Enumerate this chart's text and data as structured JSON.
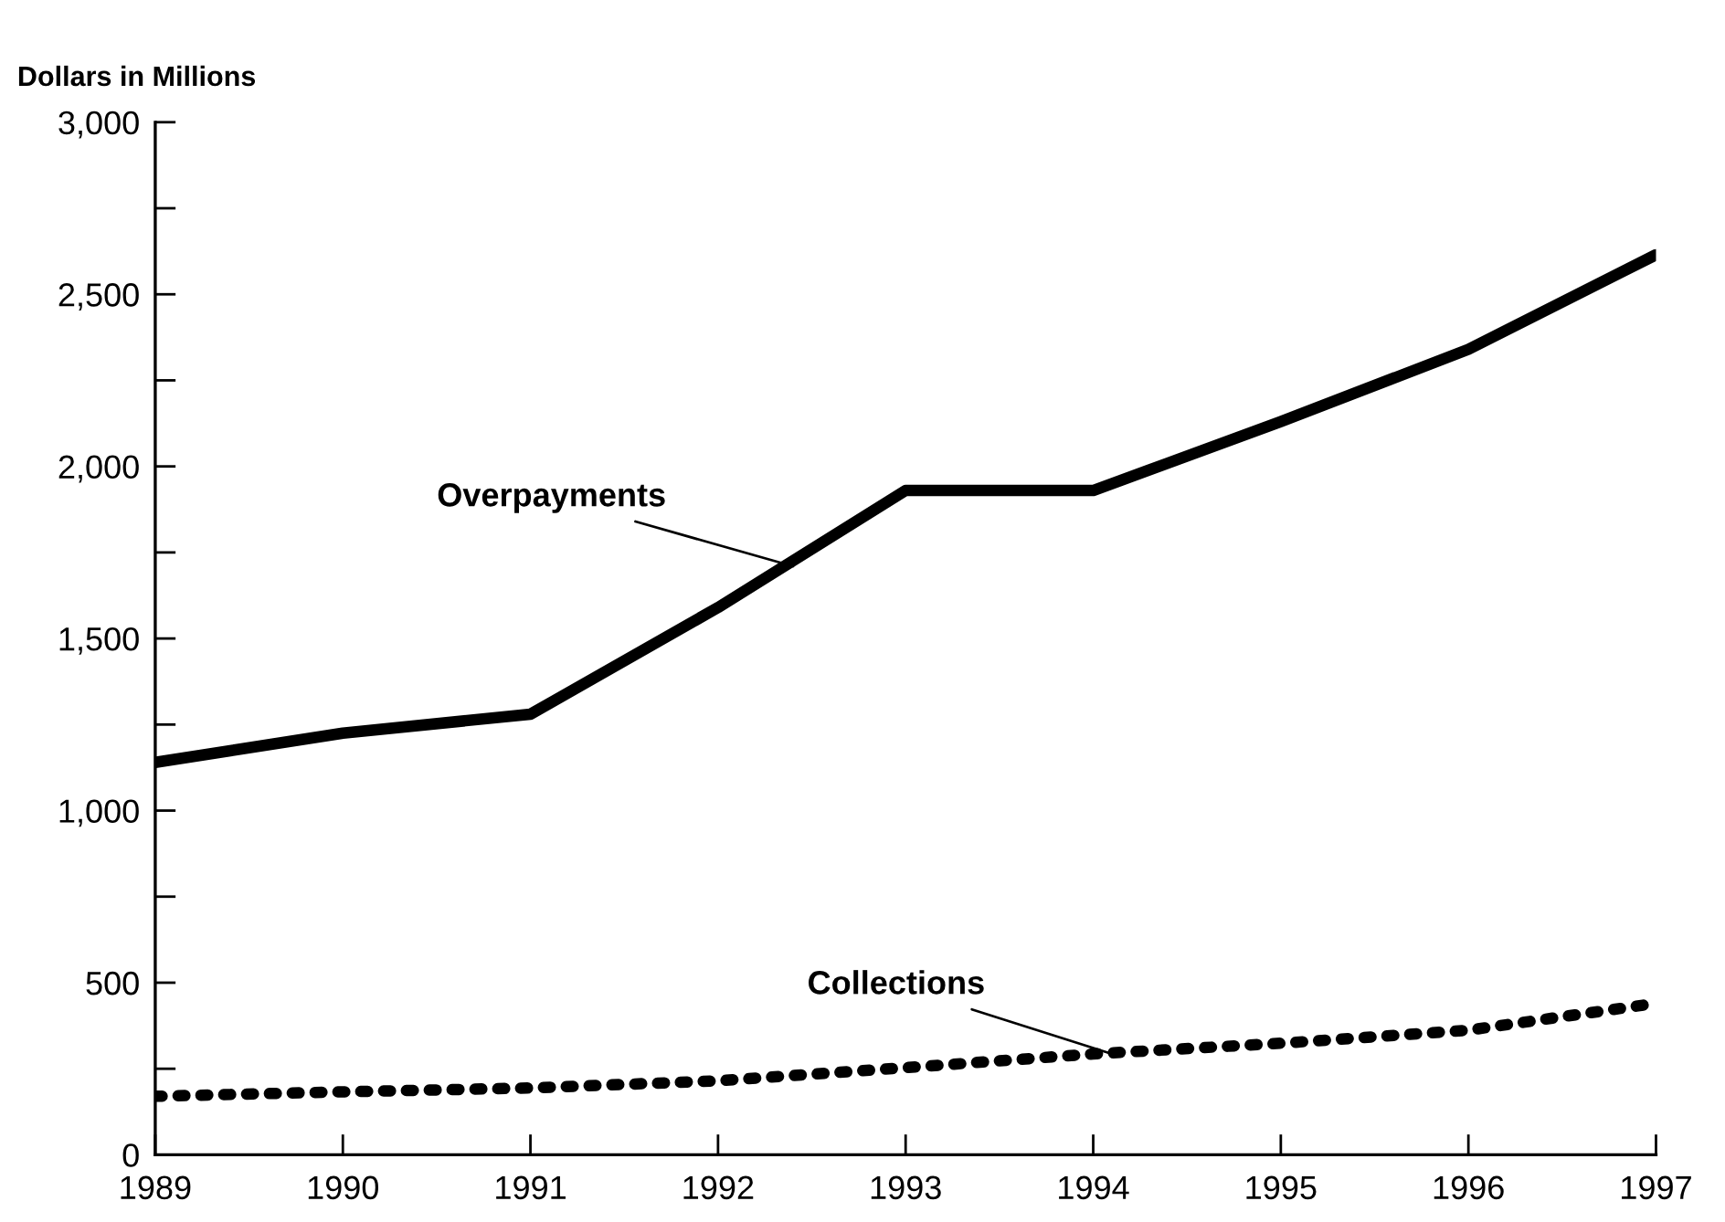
{
  "chart_data": {
    "type": "line",
    "ylabel": "Dollars in Millions",
    "x": [
      1989,
      1990,
      1991,
      1992,
      1993,
      1994,
      1995,
      1996,
      1997
    ],
    "series": [
      {
        "color": "#000000",
        "line_style": "solid",
        "values": [
          1140,
          1225,
          1280,
          1590,
          1930,
          1930,
          2130,
          2340,
          2615
        ]
      },
      {
        "color": "#000000",
        "line_style": "dotted",
        "values": [
          170,
          183,
          194,
          215,
          253,
          293,
          324,
          362,
          440
        ]
      }
    ],
    "xlim": [
      1989,
      1997
    ],
    "xticks": [
      1989,
      1990,
      1991,
      1992,
      1993,
      1994,
      1995,
      1996,
      1997
    ],
    "ylim": [
      0,
      3000
    ],
    "yticks": [
      0,
      {
        "value": 250,
        "label": null
      },
      {
        "value": 500,
        "label": "500"
      },
      {
        "value": 750,
        "label": null
      },
      {
        "value": 1000,
        "label": "1,000"
      },
      {
        "value": 1250,
        "label": null
      },
      {
        "value": 1500,
        "label": "1,500"
      },
      {
        "value": 1750,
        "label": null
      },
      {
        "value": 2000,
        "label": "2,000"
      },
      {
        "value": 2250,
        "label": null
      },
      {
        "value": 2500,
        "label": "2,500"
      },
      {
        "value": 2750,
        "label": null
      },
      {
        "value": 3000,
        "label": "3,000"
      }
    ],
    "annotations": [
      {
        "text": "Overpayments",
        "x": 1992.4,
        "y": 1710
      },
      {
        "text": "Collections",
        "x": 1994.1,
        "y": 293
      }
    ],
    "grid": false,
    "legend": false
  }
}
